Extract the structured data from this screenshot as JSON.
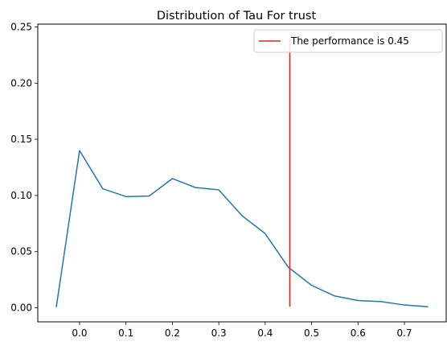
{
  "chart_data": {
    "type": "line",
    "title": "Distribution of Tau For trust",
    "xlabel": "",
    "ylabel": "",
    "xlim": [
      -0.09,
      0.79
    ],
    "ylim": [
      -0.0125,
      0.2525
    ],
    "x_ticks": [
      0.0,
      0.1,
      0.2,
      0.3,
      0.4,
      0.5,
      0.6,
      0.7
    ],
    "x_tick_labels": [
      "0.0",
      "0.1",
      "0.2",
      "0.3",
      "0.4",
      "0.5",
      "0.6",
      "0.7"
    ],
    "y_ticks": [
      0.0,
      0.05,
      0.1,
      0.15,
      0.2,
      0.25
    ],
    "y_tick_labels": [
      "0.00",
      "0.05",
      "0.10",
      "0.15",
      "0.20",
      "0.25"
    ],
    "grid": false,
    "legend_placement": "top-right",
    "series": [
      {
        "color": "#1f77b4",
        "x": [
          -0.05,
          0.0,
          0.05,
          0.1,
          0.15,
          0.2,
          0.25,
          0.3,
          0.35,
          0.4,
          0.45,
          0.5,
          0.55,
          0.6,
          0.65,
          0.7,
          0.75
        ],
        "y": [
          0.001,
          0.14,
          0.106,
          0.099,
          0.0995,
          0.115,
          0.107,
          0.105,
          0.082,
          0.066,
          0.036,
          0.02,
          0.0105,
          0.0065,
          0.0055,
          0.0025,
          0.001
        ]
      }
    ],
    "vline": {
      "name": "The performance is 0.45",
      "x": 0.453,
      "y_range": [
        0.001,
        0.24
      ],
      "color": "#d62728"
    }
  }
}
